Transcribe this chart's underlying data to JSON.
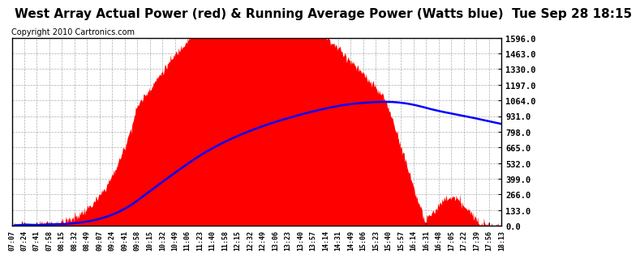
{
  "title": "West Array Actual Power (red) & Running Average Power (Watts blue)  Tue Sep 28 18:15",
  "copyright": "Copyright 2010 Cartronics.com",
  "y_ticks": [
    0.0,
    133.0,
    266.0,
    399.0,
    532.0,
    665.0,
    798.0,
    931.0,
    1064.0,
    1197.0,
    1330.0,
    1463.0,
    1596.0
  ],
  "y_max": 1596.0,
  "y_min": 0.0,
  "actual_color": "#FF0000",
  "avg_color": "#0000FF",
  "background_color": "#FFFFFF",
  "plot_bg_color": "#FFFFFF",
  "grid_color": "#999999",
  "title_fontsize": 11,
  "copyright_fontsize": 7,
  "x_labels": [
    "07:07",
    "07:24",
    "07:41",
    "07:58",
    "08:15",
    "08:32",
    "08:49",
    "09:07",
    "09:24",
    "09:41",
    "09:58",
    "10:15",
    "10:32",
    "10:49",
    "11:06",
    "11:23",
    "11:40",
    "11:58",
    "12:15",
    "12:32",
    "12:49",
    "13:06",
    "13:23",
    "13:40",
    "13:57",
    "14:14",
    "14:31",
    "14:49",
    "15:06",
    "15:23",
    "15:40",
    "15:57",
    "16:14",
    "16:31",
    "16:48",
    "17:05",
    "17:22",
    "17:39",
    "17:56",
    "18:13"
  ]
}
